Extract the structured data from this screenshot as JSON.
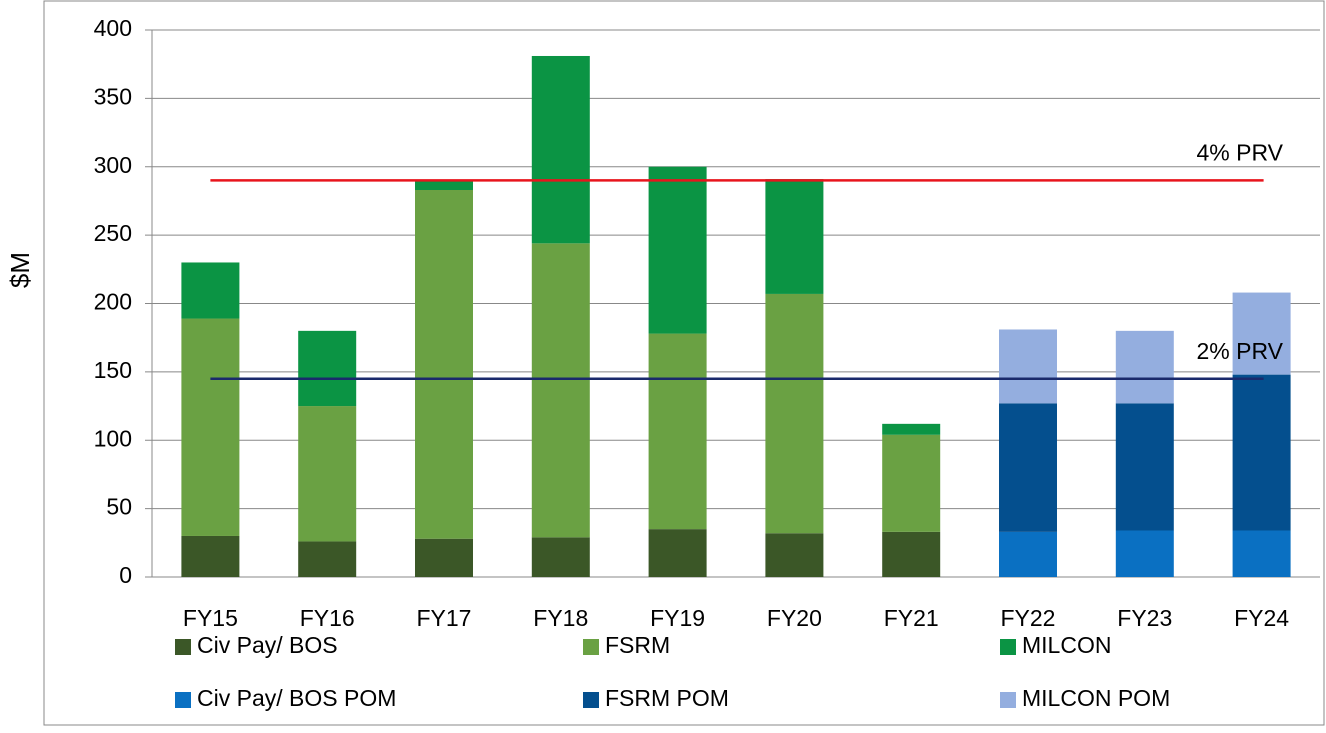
{
  "chart_data": {
    "type": "stacked_bar",
    "y_label": "$M",
    "categories": [
      "FY15",
      "FY16",
      "FY17",
      "FY18",
      "FY19",
      "FY20",
      "FY21",
      "FY22",
      "FY23",
      "FY24"
    ],
    "series": [
      {
        "name": "Civ Pay/ BOS",
        "color": "#3b5727",
        "values": [
          30,
          26,
          28,
          29,
          35,
          32,
          33,
          null,
          null,
          null
        ]
      },
      {
        "name": "FSRM",
        "color": "#6aa143",
        "values": [
          159,
          99,
          255,
          215,
          143,
          175,
          71,
          null,
          null,
          null
        ]
      },
      {
        "name": "MILCON",
        "color": "#0b9444",
        "values": [
          41,
          55,
          7,
          137,
          122,
          84,
          8,
          null,
          null,
          null
        ]
      },
      {
        "name": "Civ Pay/ BOS POM",
        "color": "#0a70c2",
        "values": [
          null,
          null,
          null,
          null,
          null,
          null,
          null,
          33,
          34,
          34
        ]
      },
      {
        "name": "FSRM POM",
        "color": "#044f8e",
        "values": [
          null,
          null,
          null,
          null,
          null,
          null,
          null,
          94,
          93,
          114
        ]
      },
      {
        "name": "MILCON POM",
        "color": "#94aedf",
        "values": [
          null,
          null,
          null,
          null,
          null,
          null,
          null,
          54,
          53,
          60
        ]
      }
    ],
    "reference_lines": [
      {
        "label": "4% PRV",
        "value": 290,
        "color": "#e8141c"
      },
      {
        "label": "2% PRV",
        "value": 145,
        "color": "#1a2a6c"
      }
    ],
    "ylim": [
      0,
      400
    ],
    "yticks": [
      0,
      50,
      100,
      150,
      200,
      250,
      300,
      350,
      400
    ],
    "grid": true
  }
}
